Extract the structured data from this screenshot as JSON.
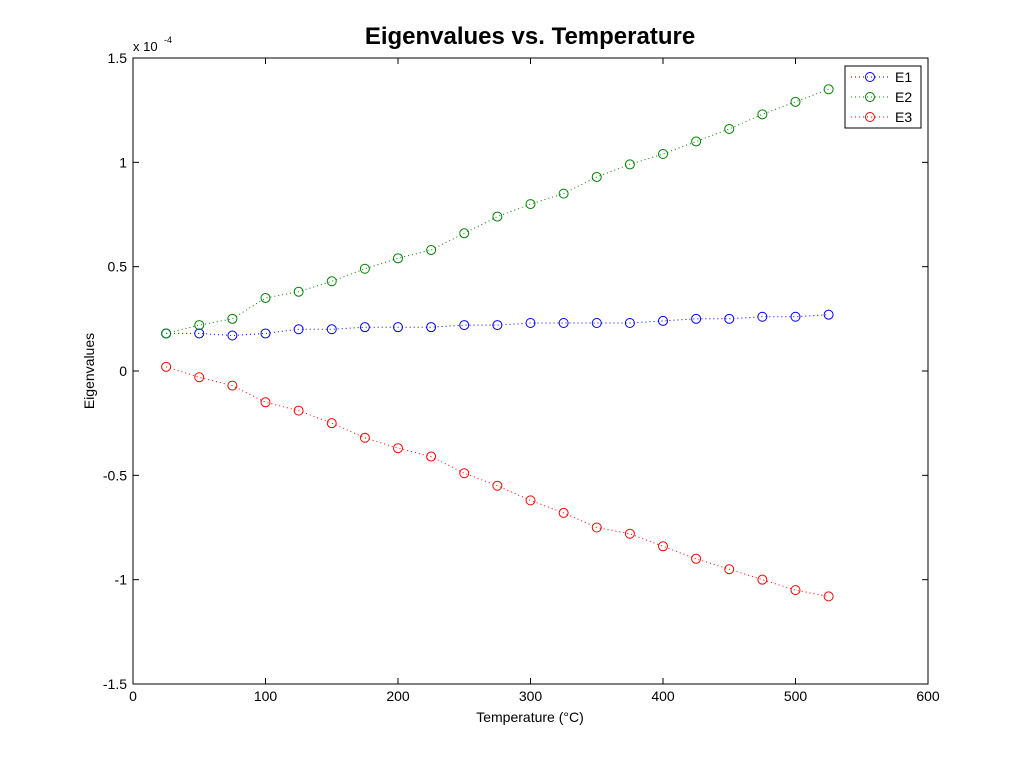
{
  "chart_data": {
    "type": "line",
    "title": "Eigenvalues vs. Temperature",
    "xlabel": "Temperature (°C)",
    "ylabel": "Eigenvalues",
    "y_exponent_base": "x 10",
    "y_exponent_power": "-4",
    "xlim": [
      0,
      600
    ],
    "ylim": [
      -1.5,
      1.5
    ],
    "x_ticks": [
      0,
      100,
      200,
      300,
      400,
      500,
      600
    ],
    "x_tick_labels": [
      "0",
      "100",
      "200",
      "300",
      "400",
      "500",
      "600"
    ],
    "y_ticks": [
      -1.5,
      -1,
      -0.5,
      0,
      0.5,
      1,
      1.5
    ],
    "y_tick_labels": [
      "-1.5",
      "-1",
      "-0.5",
      "0",
      "0.5",
      "1",
      "1.5"
    ],
    "grid": false,
    "legend_position": "top-right",
    "marker": "circle-open",
    "line_style": "dotted",
    "x": [
      25,
      50,
      75,
      100,
      125,
      150,
      175,
      200,
      225,
      250,
      275,
      300,
      325,
      350,
      375,
      400,
      425,
      450,
      475,
      500,
      525
    ],
    "series": [
      {
        "name": "E1",
        "color": "#0000ff",
        "values": [
          0.18,
          0.18,
          0.17,
          0.18,
          0.2,
          0.2,
          0.21,
          0.21,
          0.21,
          0.22,
          0.22,
          0.23,
          0.23,
          0.23,
          0.23,
          0.24,
          0.25,
          0.25,
          0.26,
          0.26,
          0.27
        ]
      },
      {
        "name": "E2",
        "color": "#008000",
        "values": [
          0.18,
          0.22,
          0.25,
          0.35,
          0.38,
          0.43,
          0.49,
          0.54,
          0.58,
          0.66,
          0.74,
          0.8,
          0.85,
          0.93,
          0.99,
          1.04,
          1.1,
          1.16,
          1.23,
          1.29,
          1.35
        ]
      },
      {
        "name": "E3",
        "color": "#ff0000",
        "values": [
          0.02,
          -0.03,
          -0.07,
          -0.15,
          -0.19,
          -0.25,
          -0.32,
          -0.37,
          -0.41,
          -0.49,
          -0.55,
          -0.62,
          -0.68,
          -0.75,
          -0.78,
          -0.84,
          -0.9,
          -0.95,
          -1.0,
          -1.05,
          -1.08
        ]
      }
    ]
  }
}
